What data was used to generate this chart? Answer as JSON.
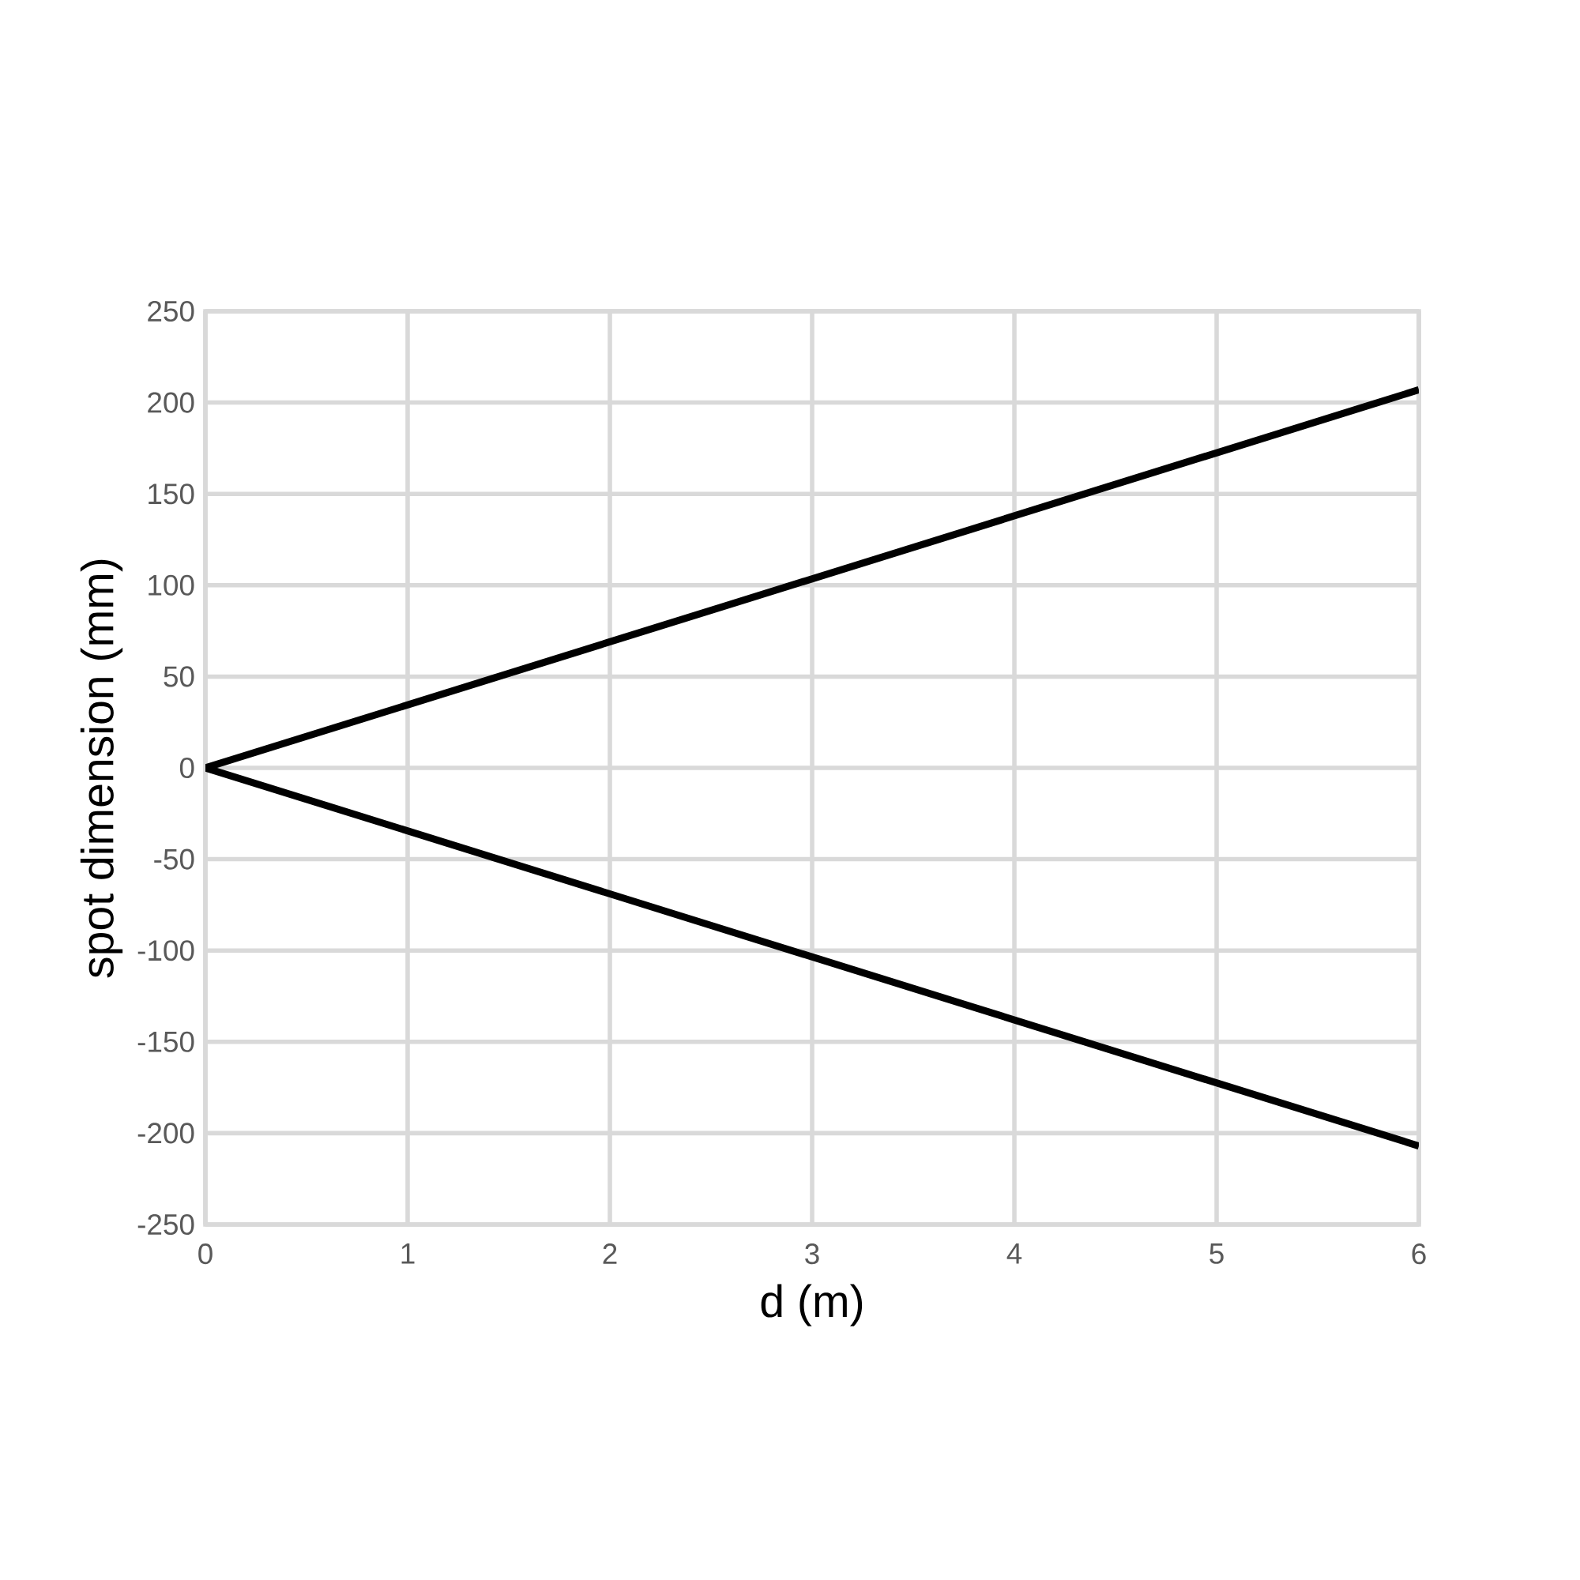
{
  "chart_data": {
    "type": "line",
    "xlabel": "d (m)",
    "ylabel": "spot dimension (mm)",
    "series": [
      {
        "color": "#000000",
        "values": [
          0,
          207
        ]
      },
      {
        "color": "#000000",
        "values": [
          0,
          -207
        ]
      }
    ],
    "x": [
      0,
      6
    ],
    "xlim": [
      0,
      6
    ],
    "ylim": [
      -250,
      250
    ],
    "xticks": [
      0,
      1,
      2,
      3,
      4,
      5,
      6
    ],
    "yticks": [
      -250,
      -200,
      -150,
      -100,
      -50,
      0,
      50,
      100,
      150,
      200,
      250
    ],
    "grid": true,
    "marker": "none",
    "line_style": "solid"
  }
}
